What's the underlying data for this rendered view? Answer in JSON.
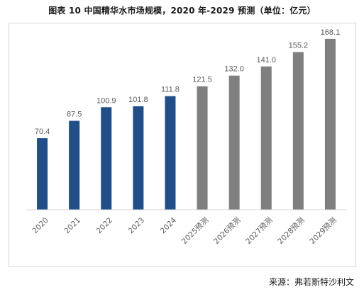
{
  "figure_title": "图表 10 中国精华水市场规模，2020 年-2029 预测（单位：亿元）",
  "source_text": "来源：弗若斯特沙利文",
  "colors": {
    "actual": "#1F4E88",
    "forecast": "#7F7F7F",
    "axis": "#D9D9D9",
    "label": "#595959"
  },
  "chart_data": {
    "type": "bar",
    "categories": [
      "2020",
      "2021",
      "2022",
      "2023",
      "2024",
      "2025预测",
      "2026预测",
      "2027预测",
      "2028预测",
      "2029预测"
    ],
    "values": [
      70.4,
      87.5,
      100.9,
      101.8,
      111.8,
      121.5,
      132.0,
      141.0,
      155.2,
      168.1
    ],
    "value_labels": [
      "70.4",
      "87.5",
      "100.9",
      "101.8",
      "111.8",
      "121.5",
      "132.0",
      "141.0",
      "155.2",
      "168.1"
    ],
    "bar_kind": [
      "actual",
      "actual",
      "actual",
      "actual",
      "actual",
      "forecast",
      "forecast",
      "forecast",
      "forecast",
      "forecast"
    ],
    "ylim": [
      0,
      175
    ],
    "grid": false,
    "legend": "none"
  }
}
